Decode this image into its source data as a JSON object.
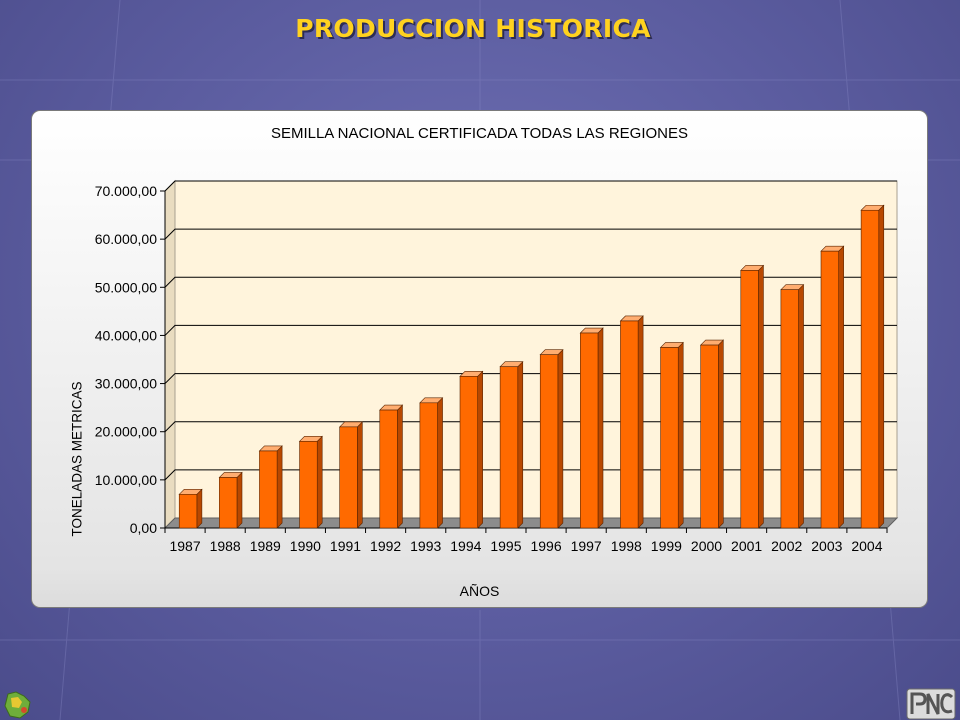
{
  "slide": {
    "title": "PRODUCCION HISTORICA"
  },
  "colors": {
    "bar_front": "#ff6a00",
    "bar_side": "#b84800",
    "bar_top": "#ffad70",
    "wall": "#fff4dc",
    "floor": "#8c8c8c",
    "title": "#ffd21f"
  },
  "logos": {
    "left": "bolivia-map-logo",
    "right": "pnc-logo"
  },
  "chart_data": {
    "type": "bar",
    "title": "SEMILLA NACIONAL CERTIFICADA TODAS LAS REGIONES",
    "xlabel": "AÑOS",
    "ylabel": "TONELADAS METRICAS",
    "categories": [
      "1987",
      "1988",
      "1989",
      "1990",
      "1991",
      "1992",
      "1993",
      "1994",
      "1995",
      "1996",
      "1997",
      "1998",
      "1999",
      "2000",
      "2001",
      "2002",
      "2003",
      "2004"
    ],
    "values": [
      7000,
      10500,
      16000,
      18000,
      21000,
      24500,
      26000,
      31500,
      33500,
      36000,
      40500,
      43000,
      37500,
      38000,
      53500,
      49500,
      57500,
      66000
    ],
    "ylim": [
      0,
      70000
    ],
    "yticks": [
      "0,00",
      "10.000,00",
      "20.000,00",
      "30.000,00",
      "40.000,00",
      "50.000,00",
      "60.000,00",
      "70.000,00"
    ],
    "grid": true,
    "legend": "none"
  }
}
